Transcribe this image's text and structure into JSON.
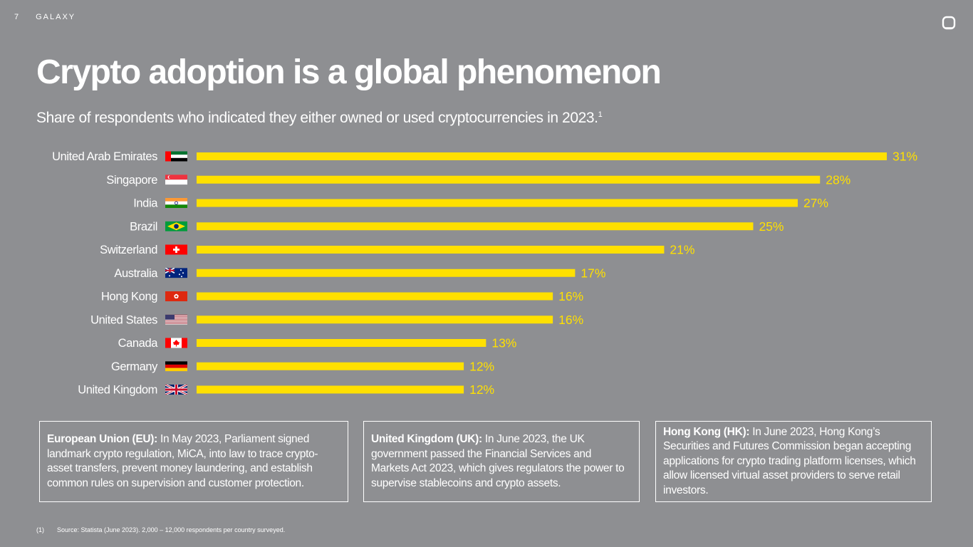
{
  "header": {
    "page_number": "7",
    "brand": "GALAXY"
  },
  "title": "Crypto adoption is a global phenomenon",
  "subtitle": "Share of respondents who indicated they either owned or used cryptocurrencies in 2023.",
  "subtitle_footnote_marker": "1",
  "chart_data": {
    "type": "bar",
    "orientation": "horizontal",
    "categories": [
      "United Arab Emirates",
      "Singapore",
      "India",
      "Brazil",
      "Switzerland",
      "Australia",
      "Hong Kong",
      "United States",
      "Canada",
      "Germany",
      "United Kingdom"
    ],
    "values": [
      31,
      28,
      27,
      25,
      21,
      17,
      16,
      16,
      13,
      12,
      12
    ],
    "value_labels": [
      "31%",
      "28%",
      "27%",
      "25%",
      "21%",
      "17%",
      "16%",
      "16%",
      "13%",
      "12%",
      "12%"
    ],
    "flag_icons": [
      "uae-flag-icon",
      "singapore-flag-icon",
      "india-flag-icon",
      "brazil-flag-icon",
      "switzerland-flag-icon",
      "australia-flag-icon",
      "hong-kong-flag-icon",
      "united-states-flag-icon",
      "canada-flag-icon",
      "germany-flag-icon",
      "united-kingdom-flag-icon"
    ],
    "bar_color": "#ffe000",
    "xlim": [
      0,
      31
    ],
    "grid": false
  },
  "boxes": [
    {
      "heading": "European Union (EU):",
      "text": " In May 2023, Parliament signed landmark crypto regulation, MiCA, into law to trace crypto-asset transfers, prevent money laundering, and establish common rules on supervision and customer protection."
    },
    {
      "heading": "United Kingdom (UK):",
      "text": " In June 2023, the UK government passed the Financial Services and Markets Act 2023, which gives regulators the power to supervise stablecoins and crypto assets."
    },
    {
      "heading": "Hong Kong (HK):",
      "text": " In June 2023, Hong Kong’s Securities and Futures Commission began accepting applications for crypto trading platform licenses, which allow licensed virtual asset providers to serve retail investors."
    }
  ],
  "footnote": {
    "marker": "(1)",
    "text": "Source: Statista (June 2023). 2,000 – 12,000 respondents per country surveyed."
  },
  "colors": {
    "background": "#8e8f92",
    "accent": "#ffe000",
    "text": "#ffffff"
  }
}
